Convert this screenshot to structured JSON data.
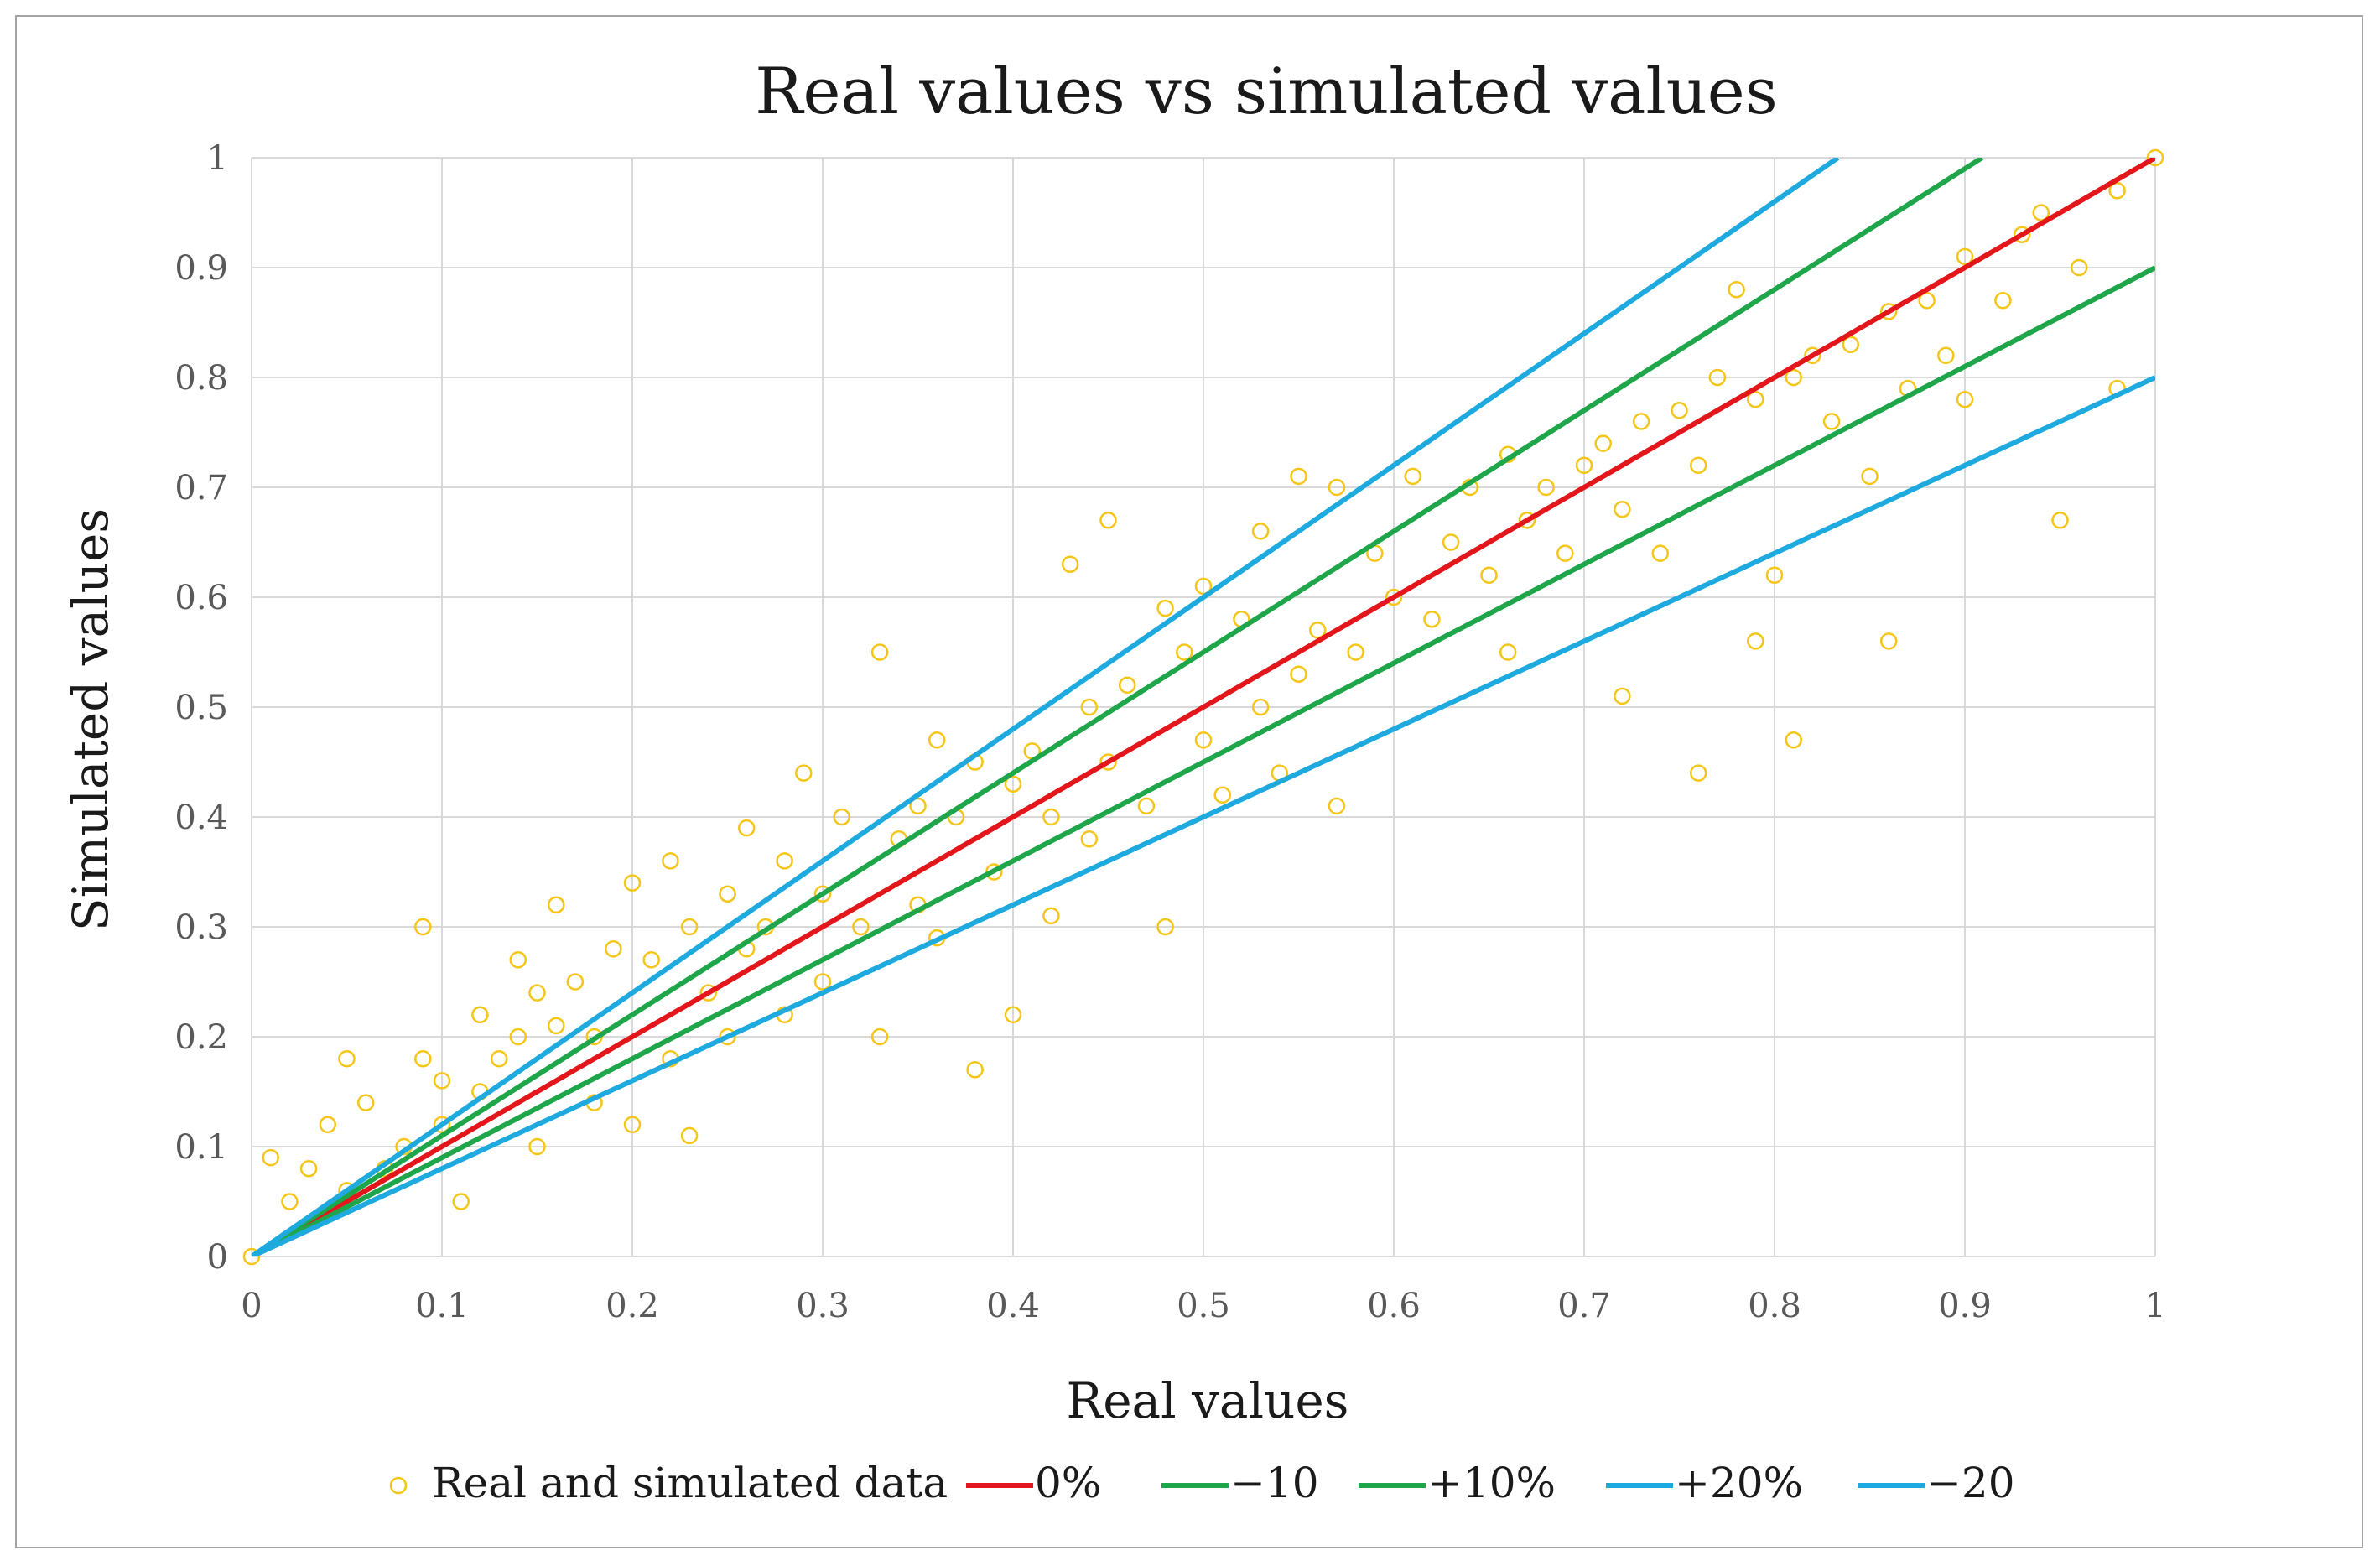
{
  "chart_data": {
    "type": "scatter",
    "title": "Real values vs simulated values",
    "xlabel": "Real values",
    "ylabel": "Simulated values",
    "xlim": [
      0,
      1
    ],
    "ylim": [
      0,
      1
    ],
    "grid": true,
    "legend_position": "bottom",
    "x_ticks": [
      "0",
      "0.1",
      "0.2",
      "0.3",
      "0.4",
      "0.5",
      "0.6",
      "0.7",
      "0.8",
      "0.9",
      "1"
    ],
    "y_ticks": [
      "0",
      "0.1",
      "0.2",
      "0.3",
      "0.4",
      "0.5",
      "0.6",
      "0.7",
      "0.8",
      "0.9",
      "1"
    ],
    "x_tick_values": [
      0,
      0.1,
      0.2,
      0.3,
      0.4,
      0.5,
      0.6,
      0.7,
      0.8,
      0.9,
      1
    ],
    "y_tick_values": [
      0,
      0.1,
      0.2,
      0.3,
      0.4,
      0.5,
      0.6,
      0.7,
      0.8,
      0.9,
      1
    ],
    "series": [
      {
        "name": "Real and simulated data",
        "kind": "scatter",
        "color": "#f5c518",
        "points": [
          [
            0.0,
            0.0
          ],
          [
            0.01,
            0.09
          ],
          [
            0.02,
            0.05
          ],
          [
            0.03,
            0.08
          ],
          [
            0.04,
            0.12
          ],
          [
            0.05,
            0.18
          ],
          [
            0.05,
            0.06
          ],
          [
            0.06,
            0.14
          ],
          [
            0.07,
            0.08
          ],
          [
            0.08,
            0.1
          ],
          [
            0.09,
            0.3
          ],
          [
            0.09,
            0.18
          ],
          [
            0.1,
            0.12
          ],
          [
            0.1,
            0.16
          ],
          [
            0.11,
            0.05
          ],
          [
            0.12,
            0.22
          ],
          [
            0.12,
            0.15
          ],
          [
            0.13,
            0.18
          ],
          [
            0.14,
            0.27
          ],
          [
            0.14,
            0.2
          ],
          [
            0.15,
            0.24
          ],
          [
            0.15,
            0.1
          ],
          [
            0.16,
            0.32
          ],
          [
            0.16,
            0.21
          ],
          [
            0.17,
            0.25
          ],
          [
            0.18,
            0.2
          ],
          [
            0.18,
            0.14
          ],
          [
            0.19,
            0.28
          ],
          [
            0.2,
            0.34
          ],
          [
            0.2,
            0.12
          ],
          [
            0.21,
            0.27
          ],
          [
            0.22,
            0.36
          ],
          [
            0.22,
            0.18
          ],
          [
            0.23,
            0.3
          ],
          [
            0.23,
            0.11
          ],
          [
            0.24,
            0.24
          ],
          [
            0.25,
            0.33
          ],
          [
            0.25,
            0.2
          ],
          [
            0.26,
            0.39
          ],
          [
            0.26,
            0.28
          ],
          [
            0.27,
            0.3
          ],
          [
            0.28,
            0.36
          ],
          [
            0.28,
            0.22
          ],
          [
            0.29,
            0.44
          ],
          [
            0.3,
            0.33
          ],
          [
            0.3,
            0.25
          ],
          [
            0.31,
            0.4
          ],
          [
            0.32,
            0.3
          ],
          [
            0.33,
            0.55
          ],
          [
            0.33,
            0.2
          ],
          [
            0.34,
            0.38
          ],
          [
            0.35,
            0.41
          ],
          [
            0.35,
            0.32
          ],
          [
            0.36,
            0.47
          ],
          [
            0.36,
            0.29
          ],
          [
            0.37,
            0.4
          ],
          [
            0.38,
            0.45
          ],
          [
            0.38,
            0.17
          ],
          [
            0.39,
            0.35
          ],
          [
            0.4,
            0.43
          ],
          [
            0.4,
            0.22
          ],
          [
            0.41,
            0.46
          ],
          [
            0.42,
            0.4
          ],
          [
            0.42,
            0.31
          ],
          [
            0.43,
            0.63
          ],
          [
            0.44,
            0.5
          ],
          [
            0.44,
            0.38
          ],
          [
            0.45,
            0.67
          ],
          [
            0.45,
            0.45
          ],
          [
            0.46,
            0.52
          ],
          [
            0.47,
            0.41
          ],
          [
            0.48,
            0.59
          ],
          [
            0.48,
            0.3
          ],
          [
            0.49,
            0.55
          ],
          [
            0.5,
            0.47
          ],
          [
            0.5,
            0.61
          ],
          [
            0.51,
            0.42
          ],
          [
            0.52,
            0.58
          ],
          [
            0.53,
            0.5
          ],
          [
            0.53,
            0.66
          ],
          [
            0.54,
            0.44
          ],
          [
            0.55,
            0.71
          ],
          [
            0.55,
            0.53
          ],
          [
            0.56,
            0.57
          ],
          [
            0.57,
            0.41
          ],
          [
            0.57,
            0.7
          ],
          [
            0.58,
            0.55
          ],
          [
            0.59,
            0.64
          ],
          [
            0.6,
            0.6
          ],
          [
            0.61,
            0.71
          ],
          [
            0.62,
            0.58
          ],
          [
            0.63,
            0.65
          ],
          [
            0.64,
            0.7
          ],
          [
            0.65,
            0.62
          ],
          [
            0.66,
            0.73
          ],
          [
            0.66,
            0.55
          ],
          [
            0.67,
            0.67
          ],
          [
            0.68,
            0.7
          ],
          [
            0.69,
            0.64
          ],
          [
            0.7,
            0.72
          ],
          [
            0.71,
            0.74
          ],
          [
            0.72,
            0.51
          ],
          [
            0.72,
            0.68
          ],
          [
            0.73,
            0.76
          ],
          [
            0.74,
            0.64
          ],
          [
            0.75,
            0.77
          ],
          [
            0.76,
            0.44
          ],
          [
            0.76,
            0.72
          ],
          [
            0.77,
            0.8
          ],
          [
            0.78,
            0.88
          ],
          [
            0.79,
            0.56
          ],
          [
            0.79,
            0.78
          ],
          [
            0.8,
            0.62
          ],
          [
            0.81,
            0.47
          ],
          [
            0.81,
            0.8
          ],
          [
            0.82,
            0.82
          ],
          [
            0.83,
            0.76
          ],
          [
            0.84,
            0.83
          ],
          [
            0.85,
            0.71
          ],
          [
            0.86,
            0.56
          ],
          [
            0.86,
            0.86
          ],
          [
            0.87,
            0.79
          ],
          [
            0.88,
            0.87
          ],
          [
            0.89,
            0.82
          ],
          [
            0.9,
            0.78
          ],
          [
            0.9,
            0.91
          ],
          [
            0.92,
            0.87
          ],
          [
            0.93,
            0.93
          ],
          [
            0.94,
            0.95
          ],
          [
            0.95,
            0.67
          ],
          [
            0.96,
            0.9
          ],
          [
            0.98,
            0.97
          ],
          [
            0.98,
            0.79
          ],
          [
            1.0,
            1.0
          ]
        ]
      },
      {
        "name": "0%",
        "kind": "line",
        "color": "#e3161b",
        "slope": 1.0
      },
      {
        "name": "−10",
        "kind": "line",
        "color": "#1fa64a",
        "slope": 0.9
      },
      {
        "name": "+10%",
        "kind": "line",
        "color": "#1fa64a",
        "slope": 1.1
      },
      {
        "name": "+20%",
        "kind": "line",
        "color": "#1eaadf",
        "slope": 1.2
      },
      {
        "name": "−20",
        "kind": "line",
        "color": "#1eaadf",
        "slope": 0.8
      }
    ]
  }
}
